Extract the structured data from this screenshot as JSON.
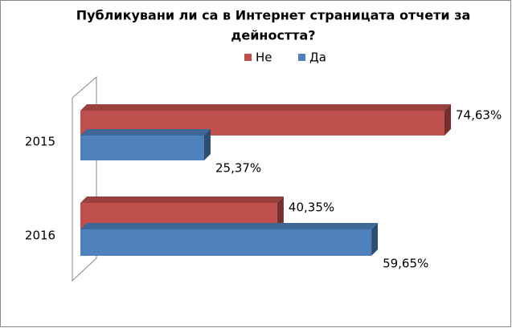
{
  "chart_data": {
    "type": "bar",
    "orientation": "horizontal",
    "title_lines": [
      "Публикувани ли са в Интернет страницата отчети за",
      "дейността?"
    ],
    "categories": [
      "2015",
      "2016"
    ],
    "series": [
      {
        "name": "Не",
        "color": "#c0504d",
        "values": [
          74.63,
          40.35
        ],
        "value_labels": [
          "74,63%",
          "40,35%"
        ]
      },
      {
        "name": "Да",
        "color": "#4f81bd",
        "values": [
          25.37,
          59.65
        ],
        "value_labels": [
          "25,37%",
          "59,65%"
        ]
      }
    ]
  }
}
